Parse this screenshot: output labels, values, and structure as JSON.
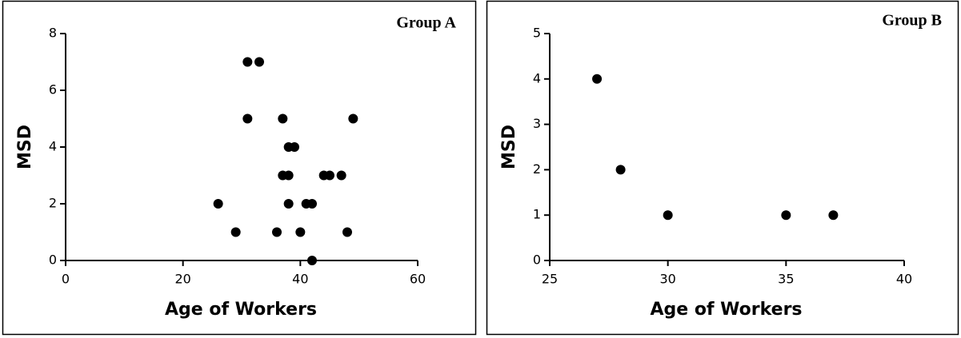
{
  "chart_data": [
    {
      "type": "scatter",
      "title": "Group A",
      "x_label": "Age of Workers",
      "y_label": "MSD",
      "color": "#000000",
      "x": [
        31,
        33,
        31,
        37,
        49,
        38,
        39,
        37,
        38,
        44,
        45,
        47,
        26,
        38,
        41,
        42,
        29,
        36,
        40,
        48,
        42
      ],
      "values": [
        7,
        7,
        5,
        5,
        5,
        4,
        4,
        3,
        3,
        3,
        3,
        3,
        2,
        2,
        2,
        2,
        1,
        1,
        1,
        1,
        0
      ],
      "xlim": [
        0,
        60
      ],
      "xticks": [
        0,
        20,
        40,
        60
      ],
      "ylim": [
        0,
        8
      ],
      "yticks": [
        0,
        2,
        4,
        6,
        8
      ],
      "grid": false
    },
    {
      "type": "scatter",
      "title": "Group B",
      "x_label": "Age of Workers",
      "y_label": "MSD",
      "color": "#000000",
      "x": [
        27,
        28,
        30,
        35,
        37
      ],
      "values": [
        4,
        2,
        1,
        1,
        1
      ],
      "xlim": [
        25,
        40
      ],
      "xticks": [
        25,
        30,
        35,
        40
      ],
      "ylim": [
        0,
        5
      ],
      "yticks": [
        0,
        1,
        2,
        3,
        4,
        5
      ],
      "grid": false
    }
  ]
}
